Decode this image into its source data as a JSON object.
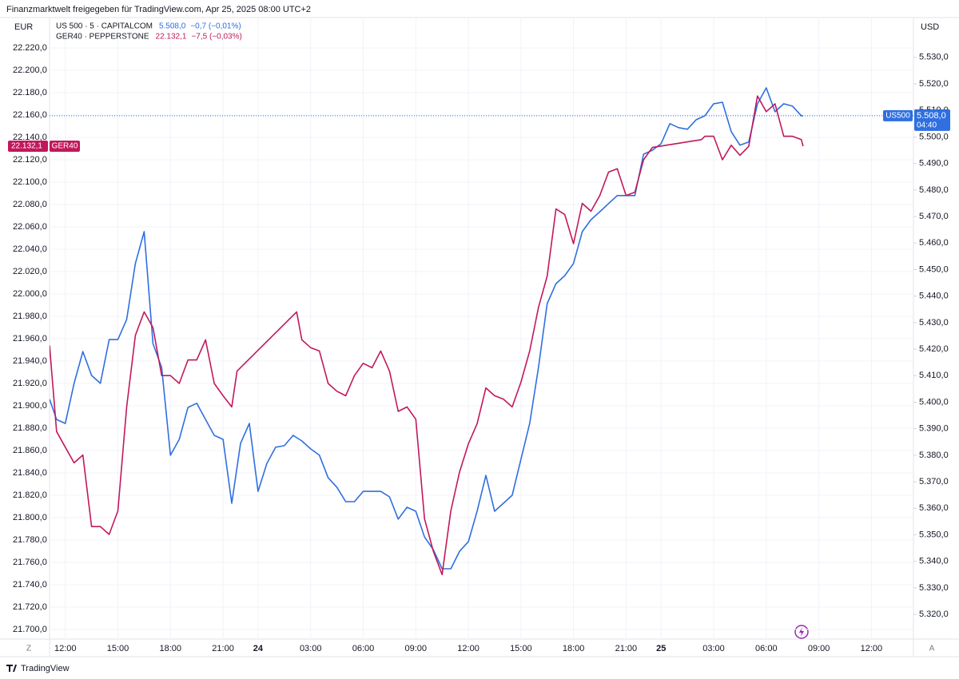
{
  "header": "Finanzmarktwelt freigegeben für TradingView.com, Apr 25, 2025 08:00 UTC+2",
  "brand": "TradingView",
  "ui": {
    "left_button": "Z",
    "right_button": "A"
  },
  "chart_data": {
    "type": "line",
    "y_unit": "EUR",
    "y2_unit": "USD",
    "xlim": [
      -0.9,
      48.4
    ],
    "xticks": [
      {
        "value": 0,
        "label": "12:00"
      },
      {
        "value": 3,
        "label": "15:00"
      },
      {
        "value": 6,
        "label": "18:00"
      },
      {
        "value": 9,
        "label": "21:00"
      },
      {
        "value": 11,
        "label": "24"
      },
      {
        "value": 14,
        "label": "03:00"
      },
      {
        "value": 17,
        "label": "06:00"
      },
      {
        "value": 20,
        "label": "09:00"
      },
      {
        "value": 23,
        "label": "12:00"
      },
      {
        "value": 26,
        "label": "15:00"
      },
      {
        "value": 29,
        "label": "18:00"
      },
      {
        "value": 32,
        "label": "21:00"
      },
      {
        "value": 34,
        "label": "25"
      },
      {
        "value": 37,
        "label": "03:00"
      },
      {
        "value": 40,
        "label": "06:00"
      },
      {
        "value": 43,
        "label": "09:00"
      },
      {
        "value": 46,
        "label": "12:00"
      }
    ],
    "ylim": [
      21691.4,
      22241.4
    ],
    "yticks": [
      {
        "value": 22220,
        "label": "22.220,0"
      },
      {
        "value": 22200,
        "label": "22.200,0"
      },
      {
        "value": 22180,
        "label": "22.180,0"
      },
      {
        "value": 22160,
        "label": "22.160,0"
      },
      {
        "value": 22140,
        "label": "22.140,0"
      },
      {
        "value": 22120,
        "label": "22.120,0"
      },
      {
        "value": 22100,
        "label": "22.100,0"
      },
      {
        "value": 22080,
        "label": "22.080,0"
      },
      {
        "value": 22060,
        "label": "22.060,0"
      },
      {
        "value": 22040,
        "label": "22.040,0"
      },
      {
        "value": 22020,
        "label": "22.020,0"
      },
      {
        "value": 22000,
        "label": "22.000,0"
      },
      {
        "value": 21980,
        "label": "21.980,0"
      },
      {
        "value": 21960,
        "label": "21.960,0"
      },
      {
        "value": 21940,
        "label": "21.940,0"
      },
      {
        "value": 21920,
        "label": "21.920,0"
      },
      {
        "value": 21900,
        "label": "21.900,0"
      },
      {
        "value": 21880,
        "label": "21.880,0"
      },
      {
        "value": 21860,
        "label": "21.860,0"
      },
      {
        "value": 21840,
        "label": "21.840,0"
      },
      {
        "value": 21820,
        "label": "21.820,0"
      },
      {
        "value": 21800,
        "label": "21.800,0"
      },
      {
        "value": 21780,
        "label": "21.780,0"
      },
      {
        "value": 21760,
        "label": "21.760,0"
      },
      {
        "value": 21740,
        "label": "21.740,0"
      },
      {
        "value": 21720,
        "label": "21.720,0"
      },
      {
        "value": 21700,
        "label": "21.700,0"
      }
    ],
    "y2lim": [
      5310.7,
      5542.6
    ],
    "y2ticks": [
      {
        "value": 5530,
        "label": "5.530,0"
      },
      {
        "value": 5520,
        "label": "5.520,0"
      },
      {
        "value": 5510,
        "label": "5.510,0"
      },
      {
        "value": 5500,
        "label": "5.500,0"
      },
      {
        "value": 5490,
        "label": "5.490,0"
      },
      {
        "value": 5480,
        "label": "5.480,0"
      },
      {
        "value": 5470,
        "label": "5.470,0"
      },
      {
        "value": 5460,
        "label": "5.460,0"
      },
      {
        "value": 5450,
        "label": "5.450,0"
      },
      {
        "value": 5440,
        "label": "5.440,0"
      },
      {
        "value": 5430,
        "label": "5.430,0"
      },
      {
        "value": 5420,
        "label": "5.420,0"
      },
      {
        "value": 5410,
        "label": "5.410,0"
      },
      {
        "value": 5400,
        "label": "5.400,0"
      },
      {
        "value": 5390,
        "label": "5.390,0"
      },
      {
        "value": 5380,
        "label": "5.380,0"
      },
      {
        "value": 5370,
        "label": "5.370,0"
      },
      {
        "value": 5360,
        "label": "5.360,0"
      },
      {
        "value": 5350,
        "label": "5.350,0"
      },
      {
        "value": 5340,
        "label": "5.340,0"
      },
      {
        "value": 5330,
        "label": "5.330,0"
      },
      {
        "value": 5320,
        "label": "5.320,0"
      }
    ],
    "grid": true,
    "series": [
      {
        "name": "US 500 · 5 · CAPITALCOM",
        "color": "#2f6fe0",
        "axis": "y2",
        "legend_value": "5.508,0",
        "legend_change": "−0,7 (−0,01%)",
        "tag": "US500",
        "price_label": "5.508,0",
        "countdown": "04:40",
        "price_line": true,
        "x": [
          -0.9,
          -0.5,
          0,
          0.5,
          1,
          1.5,
          2,
          2.5,
          3,
          3.5,
          4,
          4.5,
          5,
          5.5,
          6,
          6.5,
          7,
          7.5,
          8,
          8.5,
          9,
          9.5,
          10,
          10.5,
          11,
          11.5,
          12,
          12.5,
          13,
          13.5,
          14,
          14.5,
          15,
          15.5,
          16,
          16.5,
          17,
          17.5,
          18,
          18.5,
          19,
          19.5,
          20,
          20.5,
          21,
          21.5,
          22,
          22.5,
          23,
          23.5,
          24,
          24.5,
          25,
          25.5,
          26,
          26.5,
          27,
          27.5,
          28,
          28.5,
          29,
          29.5,
          30,
          30.5,
          31,
          31.5,
          32,
          32.5,
          33,
          33.5,
          34,
          34.5,
          35,
          35.5,
          36,
          36.5,
          37,
          37.5,
          38,
          38.5,
          39,
          39.5,
          40,
          40.5,
          41,
          41.5,
          42,
          42.1
        ],
        "values": [
          5401.1,
          5393.5,
          5392,
          5407.1,
          5419.1,
          5410.1,
          5407.1,
          5423.6,
          5423.6,
          5431.2,
          5452.3,
          5464.3,
          5422.1,
          5413.1,
          5380,
          5386,
          5398,
          5399.6,
          5393.5,
          5387.5,
          5386,
          5361.9,
          5384.5,
          5392,
          5366.4,
          5376.9,
          5383,
          5383.6,
          5387.5,
          5385.4,
          5382.4,
          5380,
          5371.5,
          5367.9,
          5362.5,
          5362.5,
          5366.4,
          5366.4,
          5366.4,
          5364.3,
          5355.9,
          5360.4,
          5358.9,
          5349.2,
          5344.4,
          5337.2,
          5337.2,
          5343.8,
          5347.4,
          5358.9,
          5372.4,
          5358.9,
          5361.9,
          5364.9,
          5378.4,
          5392,
          5413.1,
          5437.2,
          5444.7,
          5447.7,
          5452.3,
          5464.3,
          5468.8,
          5471.8,
          5474.9,
          5477.9,
          5477.9,
          5477.9,
          5493.5,
          5495,
          5497.5,
          5505,
          5503.5,
          5502.9,
          5506.5,
          5508,
          5512.5,
          5513.1,
          5502,
          5496.9,
          5498.1,
          5512.5,
          5518.5,
          5509.5,
          5512.5,
          5511.6,
          5508,
          5508
        ]
      },
      {
        "name": "GER40 · PEPPERSTONE",
        "color": "#c2185b",
        "axis": "y",
        "legend_value": "22.132,1",
        "legend_change": "−7,5 (−0,03%)",
        "tag": "GER40",
        "price_label": "22.132,1",
        "x": [
          -0.9,
          -0.5,
          0,
          0.5,
          1,
          1.5,
          2,
          2.5,
          3,
          3.5,
          4,
          4.5,
          5,
          5.5,
          6,
          6.5,
          7,
          7.5,
          8,
          8.5,
          9,
          9.5,
          9.8,
          13.2,
          13.5,
          14,
          14.5,
          15,
          15.5,
          16,
          16.5,
          17,
          17.5,
          18,
          18.5,
          19,
          19.5,
          20,
          20.5,
          21,
          21.5,
          22,
          22.5,
          23,
          23.5,
          24,
          24.5,
          25,
          25.5,
          26,
          26.5,
          27,
          27.5,
          28,
          28.5,
          29,
          29.5,
          30,
          30.5,
          31,
          31.5,
          32,
          32.5,
          33,
          33.5,
          36.3,
          36.5,
          37,
          37.5,
          38,
          38.5,
          39,
          39.5,
          40,
          40.5,
          41,
          41.5,
          42,
          42.1
        ],
        "values": [
          21954,
          21877,
          21863,
          21849,
          21856,
          21792,
          21792,
          21785,
          21806,
          21899,
          21963,
          21984,
          21970,
          21927,
          21927,
          21920,
          21941,
          21941,
          21959,
          21920,
          21909,
          21899,
          21931,
          21984,
          21959,
          21952,
          21949,
          21920,
          21913,
          21909,
          21927,
          21938,
          21934,
          21949,
          21931,
          21895,
          21899,
          21888,
          21799,
          21770,
          21749,
          21806,
          21841,
          21866,
          21884,
          21916,
          21909,
          21906,
          21899,
          21921,
          21949,
          21988,
          22016,
          22076,
          22071,
          22045,
          22081,
          22074,
          22088,
          22109,
          22112,
          22088,
          22091,
          22120,
          22131,
          22138,
          22141,
          22141,
          22120,
          22133,
          22124,
          22132,
          22177,
          22163,
          22170,
          22141,
          22141,
          22138,
          22132.1
        ]
      }
    ]
  }
}
